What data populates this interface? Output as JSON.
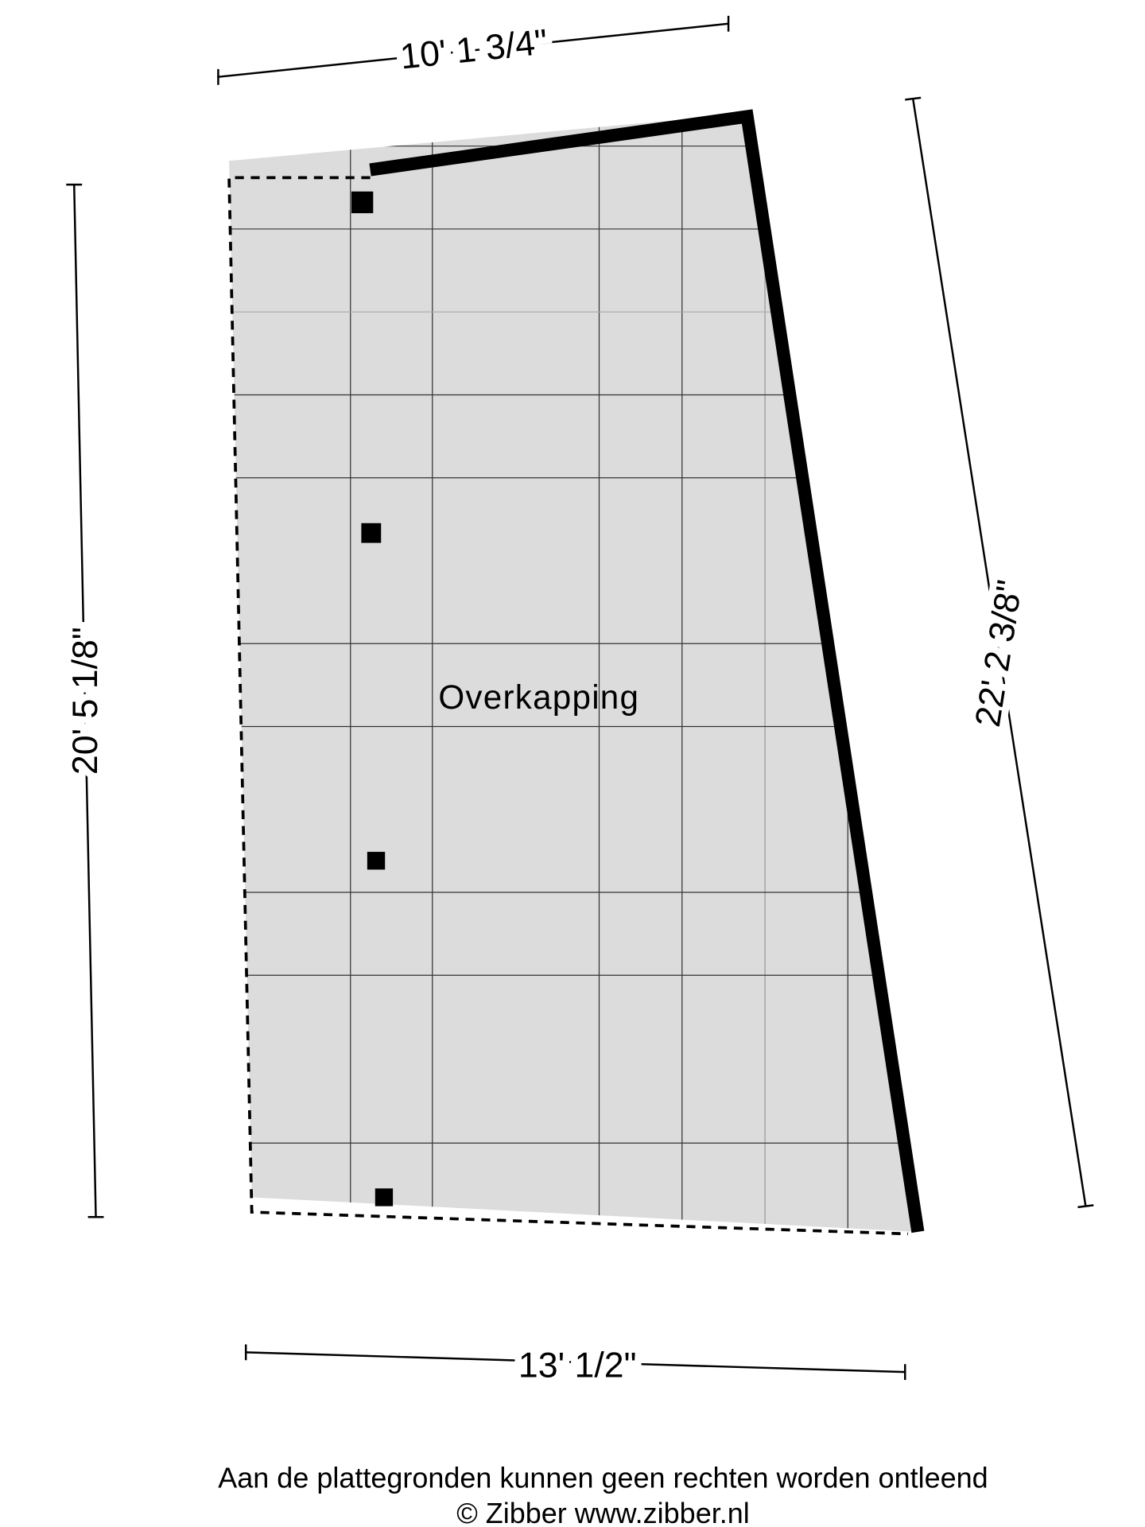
{
  "room": {
    "label": "Overkapping"
  },
  "dimensions": {
    "top": "10' 1 3/4\"",
    "left": "20' 5 1/8\"",
    "right": "22' 2 3/8\"",
    "bottom": "13' 1/2\""
  },
  "footer": {
    "disclaimer": "Aan de plattegronden kunnen geen rechten worden ontleend",
    "copyright": "© Zibber www.zibber.nl"
  }
}
